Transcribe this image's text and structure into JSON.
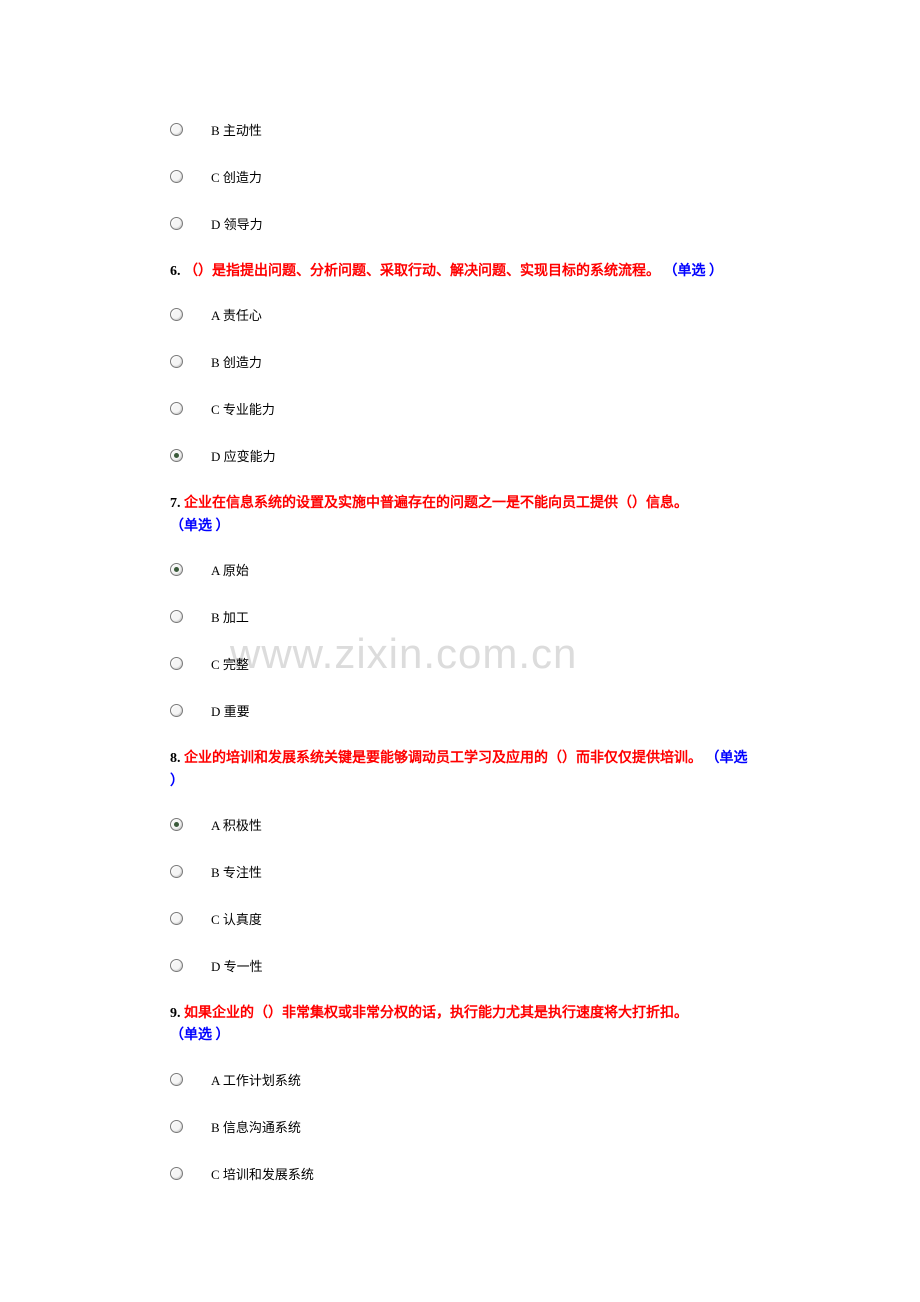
{
  "watermark": "www.zixin.com.cn",
  "orphan_options": [
    {
      "letter": "B",
      "text": "主动性",
      "checked": false
    },
    {
      "letter": "C",
      "text": "创造力",
      "checked": false
    },
    {
      "letter": "D",
      "text": "领导力",
      "checked": false
    }
  ],
  "questions": [
    {
      "num": "6. ",
      "text": "（）是指提出问题、分析问题、采取行动、解决问题、实现目标的系统流程。",
      "type": "（单选 ）",
      "options": [
        {
          "letter": "A",
          "text": "责任心",
          "checked": false
        },
        {
          "letter": "B",
          "text": "创造力",
          "checked": false
        },
        {
          "letter": "C",
          "text": "专业能力",
          "checked": false
        },
        {
          "letter": "D",
          "text": "应变能力",
          "checked": true
        }
      ]
    },
    {
      "num": "7. ",
      "text": "企业在信息系统的设置及实施中普遍存在的问题之一是不能向员工提供（）信息。",
      "type": "（单选 ）",
      "options": [
        {
          "letter": "A",
          "text": "原始",
          "checked": true
        },
        {
          "letter": "B",
          "text": "加工",
          "checked": false
        },
        {
          "letter": "C",
          "text": "完整",
          "checked": false
        },
        {
          "letter": "D",
          "text": "重要",
          "checked": false
        }
      ]
    },
    {
      "num": "8. ",
      "text": "企业的培训和发展系统关键是要能够调动员工学习及应用的（）而非仅仅提供培训。",
      "type": " （单选 ）",
      "options": [
        {
          "letter": "A",
          "text": "积极性",
          "checked": true
        },
        {
          "letter": "B",
          "text": "专注性",
          "checked": false
        },
        {
          "letter": "C",
          "text": "认真度",
          "checked": false
        },
        {
          "letter": "D",
          "text": "专一性",
          "checked": false
        }
      ]
    },
    {
      "num": "9. ",
      "text": "如果企业的（）非常集权或非常分权的话，执行能力尤其是执行速度将大打折扣。",
      "type": "（单选 ）",
      "options": [
        {
          "letter": "A",
          "text": "工作计划系统",
          "checked": false
        },
        {
          "letter": "B",
          "text": "信息沟通系统",
          "checked": false
        },
        {
          "letter": "C",
          "text": "培训和发展系统",
          "checked": false
        }
      ]
    }
  ]
}
